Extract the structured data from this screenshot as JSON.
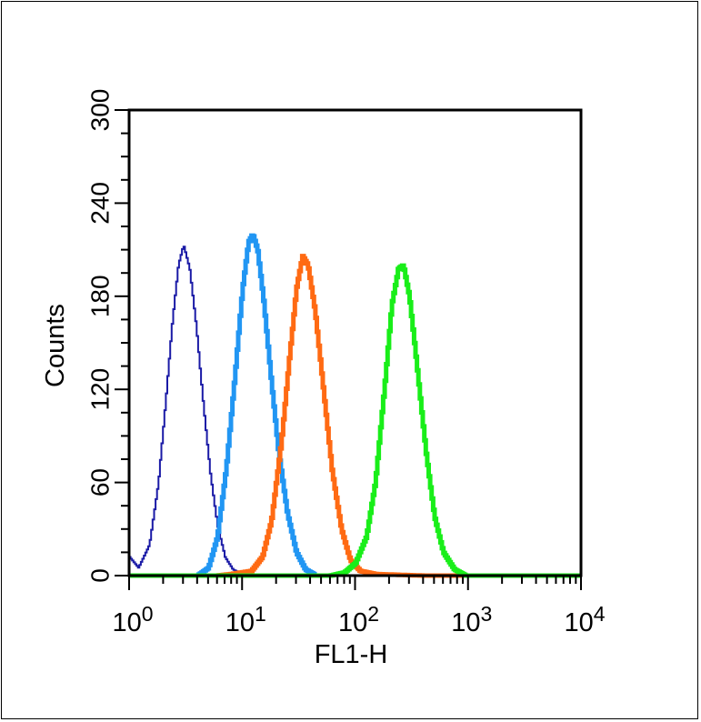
{
  "chart_data": {
    "type": "line",
    "xlabel": "FL1-H",
    "ylabel": "Counts",
    "x_scale": "log",
    "xlim": [
      1,
      10000
    ],
    "ylim": [
      0,
      300
    ],
    "x_ticks": [
      {
        "base": "10",
        "exp": "0"
      },
      {
        "base": "10",
        "exp": "1"
      },
      {
        "base": "10",
        "exp": "2"
      },
      {
        "base": "10",
        "exp": "3"
      },
      {
        "base": "10",
        "exp": "4"
      }
    ],
    "y_ticks": [
      "0",
      "60",
      "120",
      "180",
      "240",
      "300"
    ],
    "grid": false,
    "legend": "none",
    "series": [
      {
        "color": "#1a1aa6",
        "stroke": "thin",
        "peak_x": 3.0,
        "peak_y": 213,
        "left_shoulder_y": 12,
        "points": [
          [
            1.0,
            12
          ],
          [
            1.2,
            5
          ],
          [
            1.5,
            20
          ],
          [
            1.8,
            60
          ],
          [
            2.1,
            115
          ],
          [
            2.4,
            165
          ],
          [
            2.7,
            200
          ],
          [
            3.0,
            213
          ],
          [
            3.4,
            198
          ],
          [
            3.9,
            160
          ],
          [
            4.5,
            110
          ],
          [
            5.2,
            65
          ],
          [
            6.0,
            32
          ],
          [
            7.0,
            12
          ],
          [
            8.2,
            4
          ],
          [
            10,
            1
          ],
          [
            15,
            0
          ]
        ]
      },
      {
        "color": "#2196f3",
        "stroke": "thick",
        "peak_x": 12,
        "peak_y": 220,
        "points": [
          [
            4.0,
            0
          ],
          [
            5.0,
            5
          ],
          [
            6.0,
            25
          ],
          [
            7.2,
            70
          ],
          [
            8.6,
            130
          ],
          [
            10,
            185
          ],
          [
            11.3,
            215
          ],
          [
            12.3,
            220
          ],
          [
            13.6,
            210
          ],
          [
            15.5,
            175
          ],
          [
            18,
            125
          ],
          [
            21,
            78
          ],
          [
            25,
            40
          ],
          [
            30,
            15
          ],
          [
            36,
            4
          ],
          [
            45,
            0
          ]
        ]
      },
      {
        "color": "#ff6a13",
        "stroke": "thick",
        "peak_x": 35,
        "peak_y": 206,
        "points": [
          [
            6.0,
            0
          ],
          [
            8,
            1
          ],
          [
            12,
            3
          ],
          [
            15,
            12
          ],
          [
            18,
            35
          ],
          [
            22,
            85
          ],
          [
            26,
            140
          ],
          [
            30,
            185
          ],
          [
            34,
            206
          ],
          [
            38,
            200
          ],
          [
            44,
            170
          ],
          [
            52,
            120
          ],
          [
            62,
            68
          ],
          [
            75,
            30
          ],
          [
            90,
            10
          ],
          [
            110,
            3
          ],
          [
            150,
            1
          ],
          [
            400,
            0
          ],
          [
            10000,
            0
          ]
        ]
      },
      {
        "color": "#19ee19",
        "stroke": "thick",
        "peak_x": 260,
        "peak_y": 200,
        "points": [
          [
            1.0,
            0
          ],
          [
            60,
            0
          ],
          [
            80,
            2
          ],
          [
            100,
            8
          ],
          [
            125,
            25
          ],
          [
            150,
            60
          ],
          [
            180,
            120
          ],
          [
            210,
            175
          ],
          [
            240,
            198
          ],
          [
            265,
            200
          ],
          [
            300,
            180
          ],
          [
            350,
            135
          ],
          [
            420,
            80
          ],
          [
            500,
            38
          ],
          [
            600,
            15
          ],
          [
            750,
            4
          ],
          [
            950,
            0
          ],
          [
            10000,
            0
          ]
        ]
      }
    ]
  }
}
